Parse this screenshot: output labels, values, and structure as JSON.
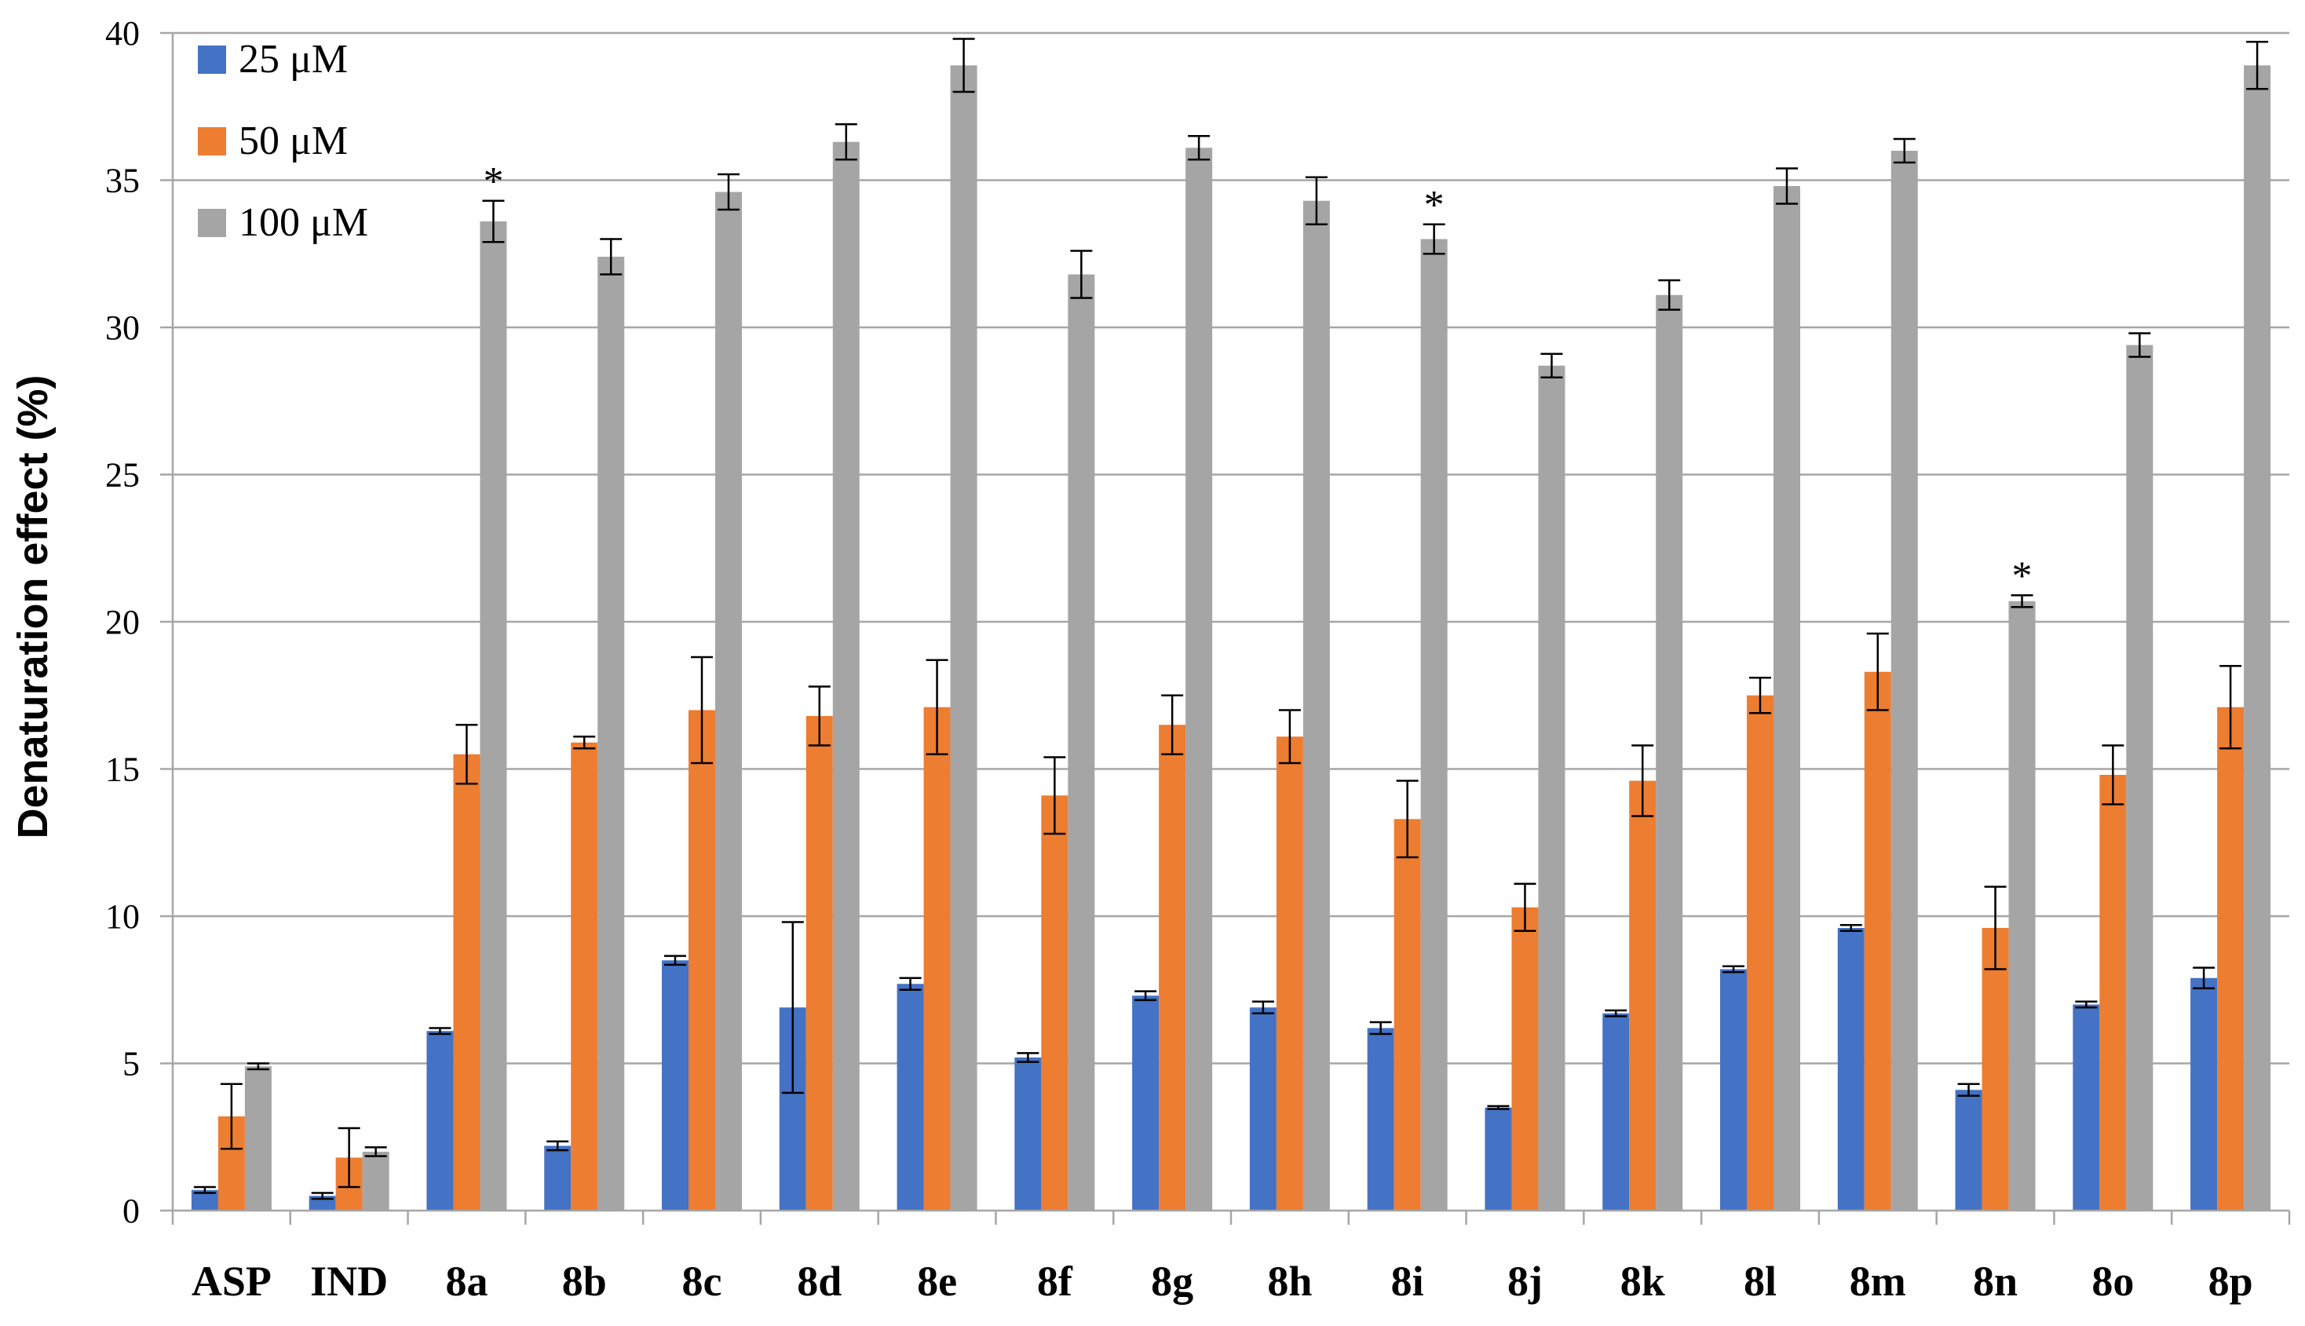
{
  "chart_data": {
    "type": "bar",
    "title": "",
    "xlabel": "",
    "ylabel": "Denaturation effect (%)",
    "ylim": [
      0,
      40
    ],
    "yticks": [
      0,
      5,
      10,
      15,
      20,
      25,
      30,
      35,
      40
    ],
    "grid": "horizontal",
    "legend_position": "top-left",
    "categories": [
      "ASP",
      "IND",
      "8a",
      "8b",
      "8c",
      "8d",
      "8e",
      "8f",
      "8g",
      "8h",
      "8i",
      "8j",
      "8k",
      "8l",
      "8m",
      "8n",
      "8o",
      "8p"
    ],
    "series": [
      {
        "name": "25 μM",
        "color": "#4472C4",
        "values": [
          0.7,
          0.5,
          6.1,
          2.2,
          8.5,
          6.9,
          7.7,
          5.2,
          7.3,
          6.9,
          6.2,
          3.5,
          6.7,
          8.2,
          9.6,
          4.1,
          7.0,
          7.9
        ],
        "errors": [
          0.1,
          0.1,
          0.1,
          0.15,
          0.15,
          2.9,
          0.2,
          0.15,
          0.15,
          0.2,
          0.2,
          0.05,
          0.1,
          0.1,
          0.1,
          0.2,
          0.1,
          0.35
        ]
      },
      {
        "name": "50 μM",
        "color": "#ED7D31",
        "values": [
          3.2,
          1.8,
          15.5,
          15.9,
          17.0,
          16.8,
          17.1,
          14.1,
          16.5,
          16.1,
          13.3,
          10.3,
          14.6,
          17.5,
          18.3,
          9.6,
          14.8,
          17.1
        ],
        "errors": [
          1.1,
          1.0,
          1.0,
          0.2,
          1.8,
          1.0,
          1.6,
          1.3,
          1.0,
          0.9,
          1.3,
          0.8,
          1.2,
          0.6,
          1.3,
          1.4,
          1.0,
          1.4
        ]
      },
      {
        "name": "100 μM",
        "color": "#A5A5A5",
        "values": [
          4.9,
          2.0,
          33.6,
          32.4,
          34.6,
          36.3,
          38.9,
          31.8,
          36.1,
          34.3,
          33.0,
          28.7,
          31.1,
          34.8,
          36.0,
          20.7,
          29.4,
          38.9
        ],
        "errors": [
          0.1,
          0.15,
          0.7,
          0.6,
          0.6,
          0.6,
          0.9,
          0.8,
          0.4,
          0.8,
          0.5,
          0.4,
          0.5,
          0.6,
          0.4,
          0.2,
          0.4,
          0.8
        ]
      }
    ],
    "annotations": [
      {
        "text": "*",
        "category": "8a",
        "series": "100 μM"
      },
      {
        "text": "*",
        "category": "8i",
        "series": "100 μM"
      },
      {
        "text": "*",
        "category": "8n",
        "series": "100 μM"
      }
    ]
  }
}
